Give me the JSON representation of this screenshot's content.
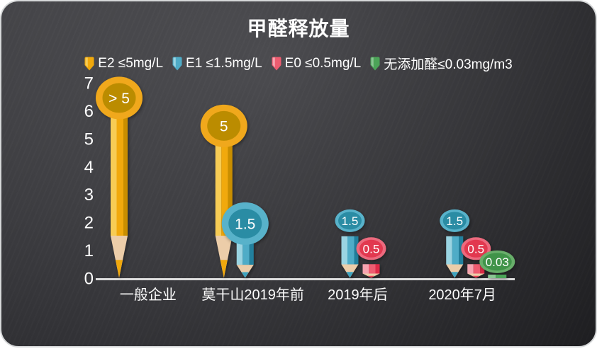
{
  "title": "甲醛释放量",
  "colors": {
    "card_background_light": "#4b4b4f",
    "card_background_dark": "#232327",
    "card_border": "#d6d8d9",
    "axis_line": "#dcdcdc",
    "text": "#ffffff",
    "wood_tip": "#eccda9"
  },
  "chart_data": {
    "type": "bar",
    "title": "甲醛释放量",
    "categories": [
      "一般企业",
      "莫干山2019年前",
      "2019年后",
      "2020年7月"
    ],
    "ylim": [
      0,
      7
    ],
    "yticks": [
      0,
      1,
      2,
      3,
      4,
      5,
      6,
      7
    ],
    "grid": false,
    "legend_position": "top",
    "xlabel": "",
    "ylabel": "",
    "series": [
      {
        "name": "E2 ≤5mg/L",
        "color": {
          "main": "#f1a90c",
          "light": "#f7cc55",
          "dark": "#c98e03",
          "head": "#f0a81a",
          "head_inner": "#bb8c06",
          "wood": "#eccda9",
          "lead": "#f0a80e"
        },
        "points": [
          {
            "category": "一般企业",
            "value": 6,
            "label": "> 5",
            "bubble": "large"
          },
          {
            "category": "莫干山2019年前",
            "value": 5,
            "label": "5",
            "bubble": "large"
          }
        ]
      },
      {
        "name": "E1 ≤1.5mg/L",
        "color": {
          "main": "#4facc7",
          "light": "#9ad4e2",
          "dark": "#20809d",
          "head": "#59b2ca",
          "head_inner": "#2b8ca4",
          "wood": "#eccda9",
          "lead": "#3ea3bf"
        },
        "points": [
          {
            "category": "莫干山2019年前",
            "value": 1.5,
            "label": "1.5",
            "bubble": "large"
          },
          {
            "category": "2019年后",
            "value": 1.5,
            "label": "1.5",
            "bubble": "small"
          },
          {
            "category": "2020年7月",
            "value": 1.5,
            "label": "1.5",
            "bubble": "small"
          }
        ]
      },
      {
        "name": "E0 ≤0.5mg/L",
        "color": {
          "main": "#ee5c70",
          "light": "#f6a4b0",
          "dark": "#de2a47",
          "head": "#ec6b7e",
          "head_inner": "#e23950",
          "wood": "#eccda9",
          "lead": "#e84055"
        },
        "points": [
          {
            "category": "2019年后",
            "value": 0.5,
            "label": "0.5",
            "bubble": "small"
          },
          {
            "category": "2020年7月",
            "value": 0.5,
            "label": "0.5",
            "bubble": "small"
          }
        ]
      },
      {
        "name": "无添加醛≤0.03mg/m3",
        "color": {
          "main": "#4ca458",
          "light": "#8ac693",
          "dark": "#3c8f4a",
          "head": "#68ae6a",
          "head_inner": "#3f9349",
          "wood": "#eccda9",
          "lead": "#4ca458"
        },
        "points": [
          {
            "category": "2020年7月",
            "value": 0.03,
            "label": "0.03",
            "bubble": "small"
          }
        ]
      }
    ]
  }
}
